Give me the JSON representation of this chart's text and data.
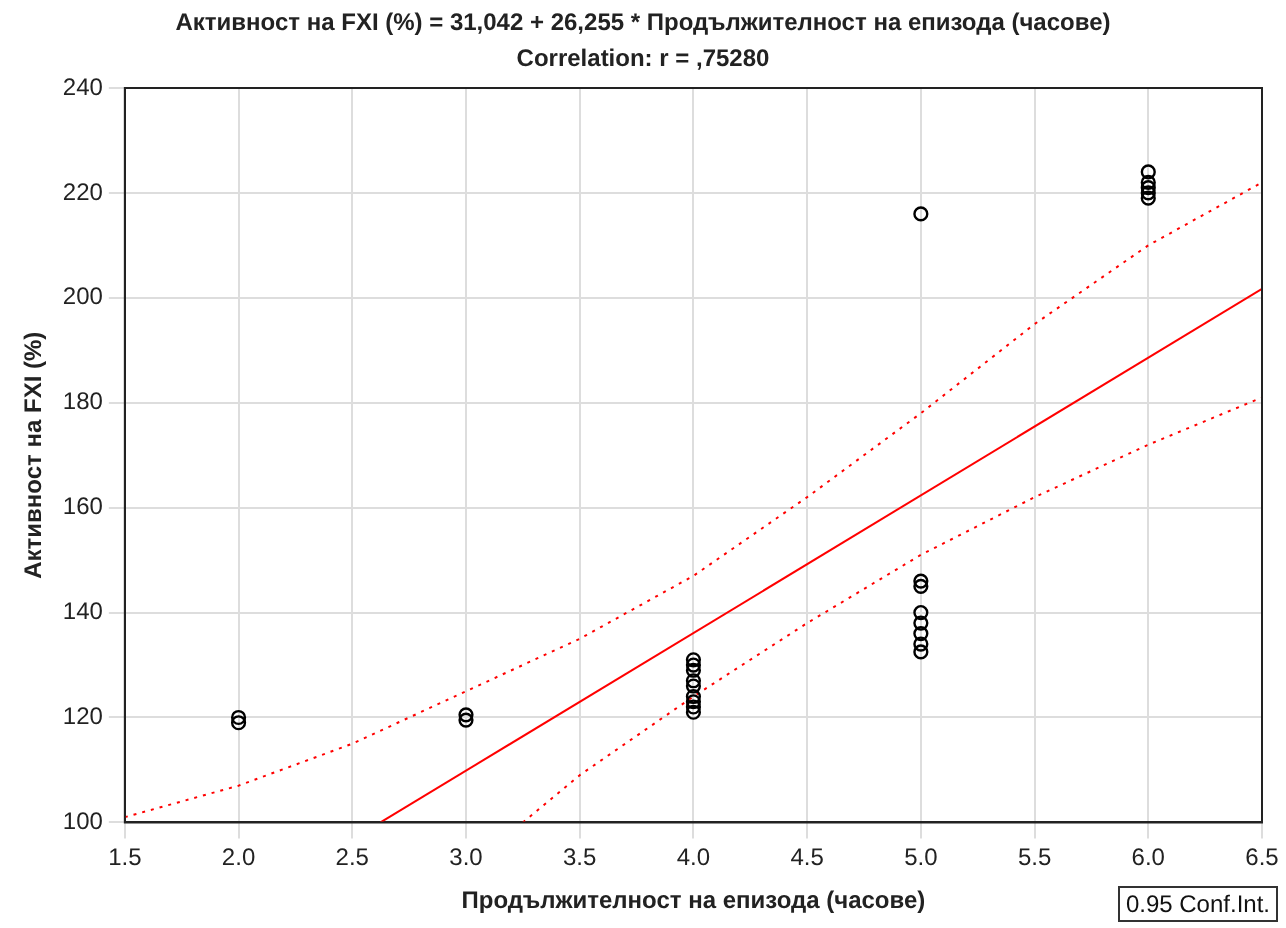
{
  "chart_data": {
    "type": "scatter",
    "title": "Активност на FXI (%) = 31,042 + 26,255 * Продължителност на епизода (часове)",
    "subtitle": "Correlation: r = ,75280",
    "xlabel": "Продължителност на епизода (часове)",
    "ylabel": "Активност на FXI (%)",
    "xlim": [
      1.5,
      6.5
    ],
    "ylim": [
      100,
      240
    ],
    "xticks": [
      {
        "value": 1.5,
        "label": "1.5"
      },
      {
        "value": 2,
        "label": "2.0"
      },
      {
        "value": 2.5,
        "label": "2.5"
      },
      {
        "value": 3,
        "label": "3.0"
      },
      {
        "value": 3.5,
        "label": "3.5"
      },
      {
        "value": 4,
        "label": "4.0"
      },
      {
        "value": 4.5,
        "label": "4.5"
      },
      {
        "value": 5,
        "label": "5.0"
      },
      {
        "value": 5.5,
        "label": "5.5"
      },
      {
        "value": 6,
        "label": "6.0"
      },
      {
        "value": 6.5,
        "label": "6.5"
      }
    ],
    "yticks": [
      100,
      120,
      140,
      160,
      180,
      200,
      220,
      240
    ],
    "grid": true,
    "annotations": [
      "0.95 Conf.Int."
    ],
    "series": [
      {
        "type": "scatter",
        "color": "#000000",
        "marker": "circle",
        "x": [
          2,
          2,
          3,
          3,
          4,
          4,
          4,
          4,
          4,
          4,
          4,
          4,
          4,
          5,
          5,
          5,
          5,
          5,
          5,
          5,
          5,
          6,
          6,
          6,
          6,
          6
        ],
        "values": [
          120,
          119,
          120.5,
          119.5,
          131,
          130,
          129,
          127,
          126,
          124,
          123,
          122,
          121,
          216,
          146,
          145,
          140,
          138,
          136,
          134,
          132.5,
          224,
          222,
          221,
          220,
          219
        ]
      },
      {
        "type": "line",
        "color": "#ff0000",
        "line_style": "solid",
        "marker": "none",
        "x": [
          2.624,
          6.5
        ],
        "values": [
          100,
          201.7
        ]
      },
      {
        "type": "line",
        "color": "#ff0000",
        "line_style": "dotted",
        "marker": "none",
        "x": [
          1.5,
          2,
          2.5,
          3,
          3.5,
          4,
          4.5,
          5,
          5.5,
          6,
          6.5
        ],
        "values": [
          101,
          107,
          115,
          125,
          135,
          147,
          162,
          178,
          195,
          210,
          222
        ]
      },
      {
        "type": "line",
        "color": "#ff0000",
        "line_style": "dotted",
        "marker": "none",
        "x": [
          3.25,
          3.5,
          4,
          4.5,
          5,
          5.5,
          6,
          6.5
        ],
        "values": [
          100,
          109,
          124,
          138,
          151,
          162,
          172,
          181
        ]
      }
    ]
  }
}
